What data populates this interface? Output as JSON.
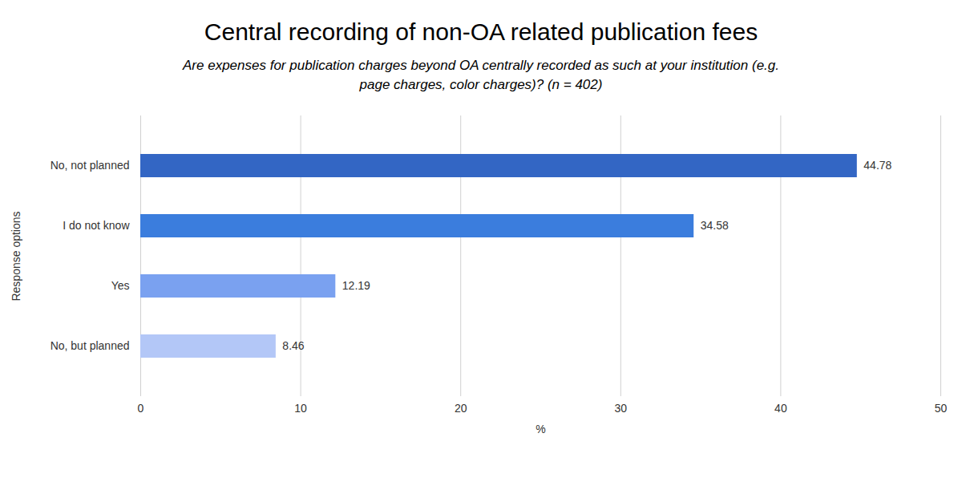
{
  "chart_data": {
    "type": "bar",
    "orientation": "horizontal",
    "title": "Central recording of non-OA related publication fees",
    "subtitle": "Are expenses for publication charges beyond OA centrally recorded as such at your institution (e.g. page charges, color charges)? (n = 402)",
    "x_label": "%",
    "y_label": "Response options",
    "categories": [
      "No, not planned",
      "I do not know",
      "Yes",
      "No, but planned"
    ],
    "values": [
      44.78,
      34.58,
      12.19,
      8.46
    ],
    "colors": [
      "#3366c4",
      "#3b7ddd",
      "#7aa1f0",
      "#b3c7f7"
    ],
    "xlim": [
      0,
      50
    ],
    "xticks": [
      0,
      10,
      20,
      30,
      40,
      50
    ],
    "grid": true,
    "data_labels": true
  }
}
